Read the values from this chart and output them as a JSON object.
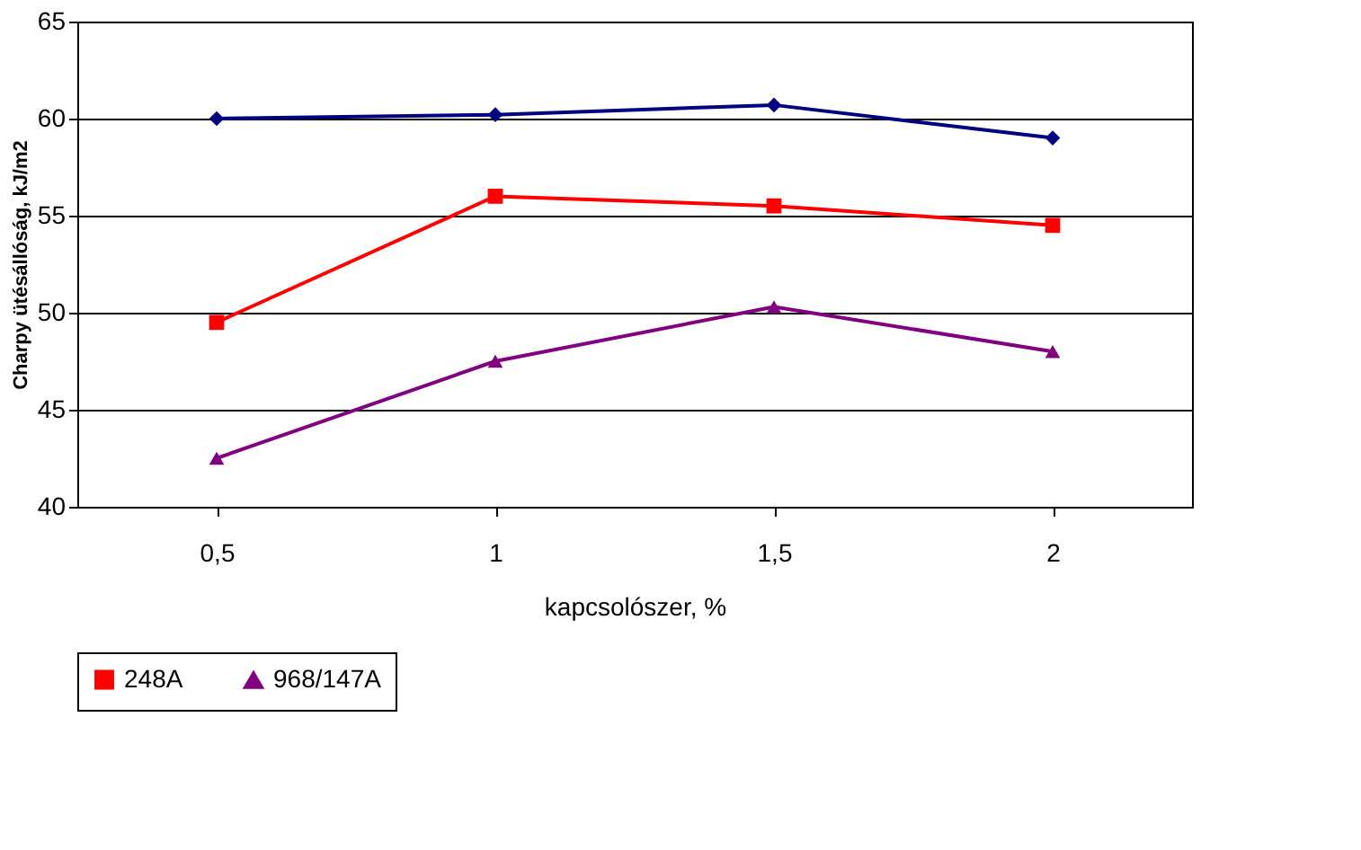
{
  "chart_data": {
    "type": "line",
    "xlabel": "kapcsolószer, %",
    "ylabel": "Charpy ütésállóság, kJ/m2",
    "categories": [
      "0,5",
      "1",
      "1,5",
      "2"
    ],
    "series": [
      {
        "color": "#000080",
        "marker": "diamond",
        "values": [
          60,
          60.2,
          60.7,
          59
        ]
      },
      {
        "name": "248A",
        "color": "#ff0000",
        "marker": "square",
        "values": [
          49.5,
          56,
          55.5,
          54.5
        ]
      },
      {
        "name": "968/147A",
        "color": "#800080",
        "marker": "triangle",
        "values": [
          42.5,
          47.5,
          50.3,
          48
        ]
      }
    ],
    "ylim": [
      40,
      65
    ],
    "yticks": [
      40,
      45,
      50,
      55,
      60,
      65
    ],
    "grid": "y",
    "legend": "bottom",
    "line_style": "solid"
  }
}
